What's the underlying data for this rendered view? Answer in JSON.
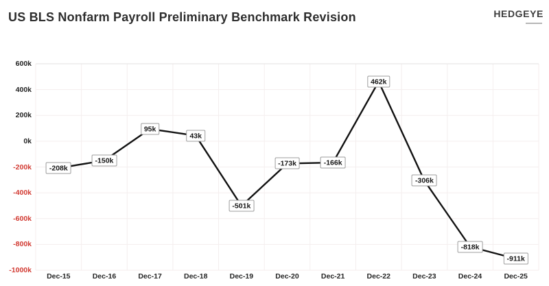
{
  "header": {
    "title": "US BLS Nonfarm Payroll Preliminary Benchmark Revision",
    "logo": "HEDGEYE"
  },
  "chart_data": {
    "type": "line",
    "title": "US BLS Nonfarm Payroll Preliminary Benchmark Revision",
    "unit": "k",
    "categories": [
      "Dec-15",
      "Dec-16",
      "Dec-17",
      "Dec-18",
      "Dec-19",
      "Dec-20",
      "Dec-21",
      "Dec-22",
      "Dec-23",
      "Dec-24",
      "Dec-25"
    ],
    "values": [
      -208,
      -150,
      95,
      43,
      -501,
      -173,
      -166,
      462,
      -306,
      -818,
      -911
    ],
    "value_labels": [
      "-208k",
      "-150k",
      "95k",
      "43k",
      "-501k",
      "-173k",
      "-166k",
      "462k",
      "-306k",
      "-818k",
      "-911k"
    ],
    "xlabel": "",
    "ylabel": "",
    "ylim": [
      -1000,
      600
    ],
    "ytick_step": 200,
    "ytick_labels": [
      "600k",
      "400k",
      "200k",
      "0k",
      "-200k",
      "-400k",
      "-600k",
      "-800k",
      "-1000k"
    ],
    "grid": true,
    "legend": "none",
    "colors": {
      "line": "#111111",
      "tick_positive": "#242424",
      "tick_negative": "#d23b33",
      "gridline": "#f4eeee",
      "gridline_strong": "#e3e0e0",
      "label_border": "#9c9c9c",
      "label_text": "#161616"
    }
  }
}
